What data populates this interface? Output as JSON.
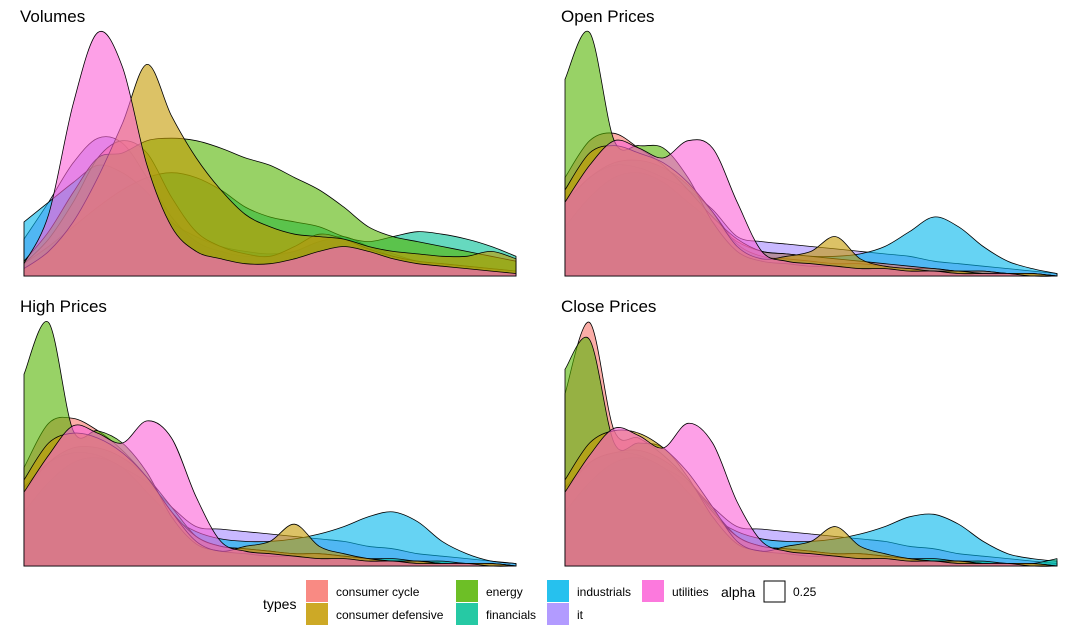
{
  "chart_data": {
    "type": "area",
    "subtype": "density",
    "legend_position": "bottom",
    "grid": false,
    "axes_visible": false,
    "series_colors": {
      "consumer cycle": "#F8766D",
      "consumer defensive": "#C49A00",
      "energy": "#53B400",
      "financials": "#00C094",
      "industrials": "#00B6EB",
      "it": "#A58AFF",
      "utilities": "#FB61D7"
    },
    "fill_alpha": 0.6,
    "outline_color": "#000000",
    "x": [
      0,
      0.05,
      0.1,
      0.15,
      0.2,
      0.25,
      0.3,
      0.35,
      0.4,
      0.45,
      0.5,
      0.55,
      0.6,
      0.65,
      0.7,
      0.75,
      0.8,
      0.85,
      0.9,
      0.95,
      1
    ],
    "panels": [
      {
        "title": "Volumes",
        "ylim": [
          0,
          1
        ],
        "series": [
          {
            "name": "consumer cycle",
            "values": [
              0.05,
              0.15,
              0.3,
              0.48,
              0.55,
              0.5,
              0.32,
              0.18,
              0.12,
              0.09,
              0.08,
              0.12,
              0.17,
              0.15,
              0.11,
              0.08,
              0.06,
              0.05,
              0.04,
              0.03,
              0.02
            ]
          },
          {
            "name": "consumer defensive",
            "values": [
              0.03,
              0.1,
              0.22,
              0.4,
              0.62,
              0.86,
              0.65,
              0.48,
              0.35,
              0.25,
              0.2,
              0.17,
              0.16,
              0.15,
              0.12,
              0.1,
              0.09,
              0.08,
              0.08,
              0.1,
              0.07
            ]
          },
          {
            "name": "energy",
            "values": [
              0.06,
              0.18,
              0.34,
              0.48,
              0.5,
              0.55,
              0.56,
              0.55,
              0.52,
              0.48,
              0.45,
              0.4,
              0.35,
              0.28,
              0.2,
              0.16,
              0.14,
              0.12,
              0.1,
              0.08,
              0.06
            ]
          },
          {
            "name": "financials",
            "values": [
              0.05,
              0.12,
              0.2,
              0.28,
              0.35,
              0.4,
              0.42,
              0.4,
              0.35,
              0.28,
              0.24,
              0.22,
              0.2,
              0.16,
              0.14,
              0.16,
              0.18,
              0.17,
              0.15,
              0.12,
              0.08
            ]
          },
          {
            "name": "industrials",
            "values": [
              0.22,
              0.3,
              0.38,
              0.45,
              0.42,
              0.34,
              0.22,
              0.16,
              0.12,
              0.1,
              0.09,
              0.1,
              0.14,
              0.16,
              0.12,
              0.08,
              0.05,
              0.04,
              0.03,
              0.02,
              0.01
            ]
          },
          {
            "name": "it",
            "values": [
              0.15,
              0.3,
              0.46,
              0.56,
              0.54,
              0.4,
              0.24,
              0.14,
              0.1,
              0.08,
              0.08,
              0.1,
              0.14,
              0.15,
              0.12,
              0.09,
              0.06,
              0.05,
              0.04,
              0.03,
              0.02
            ]
          },
          {
            "name": "utilities",
            "values": [
              0.05,
              0.25,
              0.7,
              0.99,
              0.85,
              0.45,
              0.2,
              0.1,
              0.07,
              0.05,
              0.05,
              0.07,
              0.1,
              0.12,
              0.1,
              0.07,
              0.05,
              0.04,
              0.03,
              0.02,
              0.01
            ]
          }
        ]
      },
      {
        "title": "Open Prices",
        "ylim": [
          0,
          1
        ],
        "series": [
          {
            "name": "consumer cycle",
            "values": [
              0.4,
              0.55,
              0.58,
              0.52,
              0.45,
              0.35,
              0.24,
              0.15,
              0.1,
              0.09,
              0.08,
              0.07,
              0.06,
              0.05,
              0.04,
              0.03,
              0.02,
              0.02,
              0.01,
              0.01,
              0.0
            ]
          },
          {
            "name": "consumer defensive",
            "values": [
              0.35,
              0.5,
              0.53,
              0.5,
              0.46,
              0.38,
              0.26,
              0.12,
              0.07,
              0.08,
              0.1,
              0.16,
              0.07,
              0.04,
              0.03,
              0.02,
              0.02,
              0.01,
              0.01,
              0.01,
              0.0
            ]
          },
          {
            "name": "energy",
            "values": [
              0.8,
              0.99,
              0.55,
              0.53,
              0.52,
              0.4,
              0.22,
              0.1,
              0.06,
              0.05,
              0.04,
              0.04,
              0.03,
              0.03,
              0.02,
              0.02,
              0.01,
              0.01,
              0.01,
              0.0,
              0.0
            ]
          },
          {
            "name": "financials",
            "values": [
              0.3,
              0.4,
              0.46,
              0.47,
              0.44,
              0.37,
              0.26,
              0.13,
              0.08,
              0.07,
              0.06,
              0.05,
              0.05,
              0.04,
              0.03,
              0.03,
              0.02,
              0.02,
              0.01,
              0.01,
              0.0
            ]
          },
          {
            "name": "industrials",
            "values": [
              0.2,
              0.32,
              0.4,
              0.42,
              0.38,
              0.3,
              0.22,
              0.14,
              0.1,
              0.09,
              0.08,
              0.08,
              0.09,
              0.12,
              0.18,
              0.24,
              0.2,
              0.12,
              0.06,
              0.03,
              0.01
            ]
          },
          {
            "name": "it",
            "values": [
              0.3,
              0.4,
              0.45,
              0.44,
              0.4,
              0.35,
              0.27,
              0.16,
              0.14,
              0.13,
              0.12,
              0.11,
              0.1,
              0.09,
              0.08,
              0.06,
              0.05,
              0.04,
              0.03,
              0.02,
              0.01
            ]
          },
          {
            "name": "utilities",
            "values": [
              0.3,
              0.45,
              0.55,
              0.52,
              0.48,
              0.55,
              0.52,
              0.3,
              0.1,
              0.06,
              0.05,
              0.04,
              0.03,
              0.03,
              0.02,
              0.02,
              0.01,
              0.01,
              0.01,
              0.0,
              0.0
            ]
          }
        ]
      },
      {
        "title": "High Prices",
        "ylim": [
          0,
          1
        ],
        "series": [
          {
            "name": "consumer cycle",
            "values": [
              0.4,
              0.58,
              0.6,
              0.55,
              0.47,
              0.36,
              0.22,
              0.12,
              0.08,
              0.07,
              0.06,
              0.05,
              0.05,
              0.04,
              0.03,
              0.02,
              0.02,
              0.01,
              0.01,
              0.01,
              0.0
            ]
          },
          {
            "name": "consumer defensive",
            "values": [
              0.35,
              0.5,
              0.54,
              0.52,
              0.46,
              0.36,
              0.22,
              0.1,
              0.06,
              0.08,
              0.1,
              0.17,
              0.08,
              0.05,
              0.03,
              0.02,
              0.02,
              0.01,
              0.01,
              0.01,
              0.0
            ]
          },
          {
            "name": "energy",
            "values": [
              0.78,
              0.99,
              0.55,
              0.55,
              0.5,
              0.38,
              0.2,
              0.09,
              0.06,
              0.05,
              0.04,
              0.04,
              0.03,
              0.03,
              0.02,
              0.02,
              0.01,
              0.01,
              0.01,
              0.0,
              0.0
            ]
          },
          {
            "name": "financials",
            "values": [
              0.3,
              0.42,
              0.48,
              0.48,
              0.44,
              0.36,
              0.24,
              0.12,
              0.08,
              0.07,
              0.06,
              0.05,
              0.05,
              0.04,
              0.03,
              0.03,
              0.02,
              0.02,
              0.01,
              0.01,
              0.0
            ]
          },
          {
            "name": "industrials",
            "values": [
              0.22,
              0.34,
              0.42,
              0.44,
              0.4,
              0.3,
              0.2,
              0.14,
              0.11,
              0.1,
              0.1,
              0.11,
              0.13,
              0.16,
              0.2,
              0.22,
              0.18,
              0.1,
              0.05,
              0.02,
              0.01
            ]
          },
          {
            "name": "it",
            "values": [
              0.32,
              0.42,
              0.46,
              0.45,
              0.4,
              0.34,
              0.24,
              0.16,
              0.15,
              0.14,
              0.13,
              0.12,
              0.11,
              0.1,
              0.08,
              0.07,
              0.05,
              0.04,
              0.03,
              0.02,
              0.01
            ]
          },
          {
            "name": "utilities",
            "values": [
              0.3,
              0.45,
              0.57,
              0.54,
              0.5,
              0.59,
              0.52,
              0.28,
              0.1,
              0.06,
              0.05,
              0.04,
              0.03,
              0.03,
              0.02,
              0.02,
              0.01,
              0.01,
              0.01,
              0.0,
              0.0
            ]
          }
        ]
      },
      {
        "title": "Close Prices",
        "ylim": [
          0,
          1
        ],
        "series": [
          {
            "name": "consumer cycle",
            "values": [
              0.7,
              0.99,
              0.55,
              0.52,
              0.45,
              0.35,
              0.22,
              0.12,
              0.08,
              0.07,
              0.06,
              0.05,
              0.05,
              0.04,
              0.03,
              0.02,
              0.02,
              0.01,
              0.01,
              0.01,
              0.0
            ]
          },
          {
            "name": "consumer defensive",
            "values": [
              0.35,
              0.5,
              0.55,
              0.54,
              0.48,
              0.38,
              0.24,
              0.1,
              0.06,
              0.08,
              0.1,
              0.16,
              0.08,
              0.05,
              0.03,
              0.02,
              0.02,
              0.01,
              0.01,
              0.01,
              0.0
            ]
          },
          {
            "name": "energy",
            "values": [
              0.8,
              0.92,
              0.5,
              0.5,
              0.48,
              0.36,
              0.2,
              0.09,
              0.06,
              0.05,
              0.04,
              0.04,
              0.03,
              0.03,
              0.02,
              0.02,
              0.01,
              0.01,
              0.01,
              0.0,
              0.0
            ]
          },
          {
            "name": "financials",
            "values": [
              0.3,
              0.42,
              0.46,
              0.47,
              0.43,
              0.35,
              0.23,
              0.12,
              0.08,
              0.07,
              0.06,
              0.05,
              0.05,
              0.04,
              0.03,
              0.03,
              0.02,
              0.02,
              0.01,
              0.01,
              0.03
            ]
          },
          {
            "name": "industrials",
            "values": [
              0.22,
              0.34,
              0.42,
              0.44,
              0.4,
              0.3,
              0.2,
              0.14,
              0.11,
              0.1,
              0.1,
              0.11,
              0.13,
              0.16,
              0.2,
              0.21,
              0.17,
              0.1,
              0.05,
              0.03,
              0.02
            ]
          },
          {
            "name": "it",
            "values": [
              0.32,
              0.42,
              0.46,
              0.45,
              0.4,
              0.34,
              0.24,
              0.16,
              0.15,
              0.14,
              0.13,
              0.12,
              0.11,
              0.1,
              0.08,
              0.07,
              0.05,
              0.04,
              0.03,
              0.02,
              0.01
            ]
          },
          {
            "name": "utilities",
            "values": [
              0.3,
              0.45,
              0.56,
              0.53,
              0.48,
              0.58,
              0.5,
              0.26,
              0.1,
              0.06,
              0.05,
              0.04,
              0.03,
              0.03,
              0.02,
              0.02,
              0.01,
              0.01,
              0.01,
              0.0,
              0.0
            ]
          }
        ]
      }
    ],
    "legend": {
      "title": "types",
      "entries": [
        {
          "label": "consumer cycle",
          "color": "#F8766D"
        },
        {
          "label": "consumer defensive",
          "color": "#C49A00"
        },
        {
          "label": "energy",
          "color": "#53B400"
        },
        {
          "label": "financials",
          "color": "#00C094"
        },
        {
          "label": "industrials",
          "color": "#00B6EB"
        },
        {
          "label": "it",
          "color": "#A58AFF"
        },
        {
          "label": "utilities",
          "color": "#FB61D7"
        }
      ],
      "alpha_title": "alpha",
      "alpha_value": "0.25"
    }
  }
}
